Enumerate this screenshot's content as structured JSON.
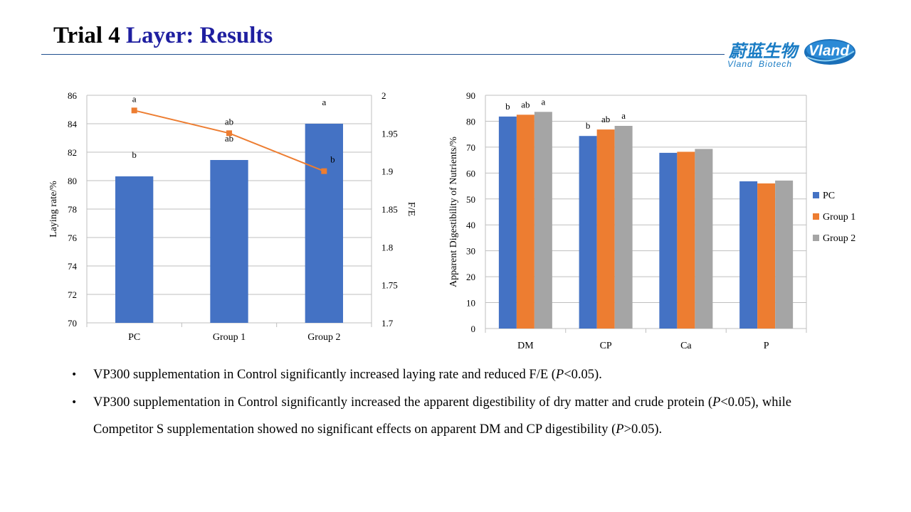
{
  "slide": {
    "title_part1": "Trial 4",
    "title_part2": "Layer: Results",
    "logo": {
      "cn": "蔚蓝生物",
      "en": "Vland Biotech",
      "badge": "Vland",
      "color": "#1a7cc4"
    }
  },
  "bullets": [
    {
      "pre": "VP300 supplementation in Control significantly increased laying rate and reduced F/E (",
      "p": "P",
      "post": "<0.05)."
    },
    {
      "pre": "VP300 supplementation in Control significantly increased the apparent digestibility of dry matter and crude protein (",
      "p1": "P",
      "mid": "<0.05), while Competitor S supplementation showed no significant effects on apparent DM and CP digestibility (",
      "p2": "P",
      "post": ">0.05)."
    }
  ],
  "chart_data": [
    {
      "type": "bar+line",
      "title": "",
      "categories": [
        "PC",
        "Group 1",
        "Group 2"
      ],
      "bar_series": {
        "name": "Laying rate",
        "values": [
          80.3,
          81.45,
          84.0
        ],
        "labels": [
          "b",
          "ab",
          "a"
        ],
        "color": "#4472c4"
      },
      "line_series": {
        "name": "F/E",
        "values": [
          1.98,
          1.95,
          1.9
        ],
        "labels": [
          "a",
          "ab",
          "b"
        ],
        "color": "#ed7d31"
      },
      "ylabel": "Laying rate/%",
      "y2label": "F/E",
      "ylim": [
        70,
        86
      ],
      "y2lim": [
        1.7,
        2.0
      ],
      "yticks": [
        "70",
        "72",
        "74",
        "76",
        "78",
        "80",
        "82",
        "84",
        "86"
      ],
      "y2ticks": [
        "1.7",
        "1.75",
        "1.8",
        "1.85",
        "1.9",
        "1.95",
        "2"
      ],
      "grid": true,
      "legend": "none"
    },
    {
      "type": "bar",
      "title": "",
      "categories": [
        "DM",
        "CP",
        "Ca",
        "P"
      ],
      "series": [
        {
          "name": "PC",
          "values": [
            81.8,
            74.3,
            67.8,
            56.8
          ],
          "color": "#4472c4",
          "labels": [
            "b",
            "b",
            "",
            ""
          ]
        },
        {
          "name": "Group 1",
          "values": [
            82.5,
            76.8,
            68.2,
            56.0
          ],
          "color": "#ed7d31",
          "labels": [
            "ab",
            "ab",
            "",
            ""
          ]
        },
        {
          "name": "Group 2",
          "values": [
            83.6,
            78.2,
            69.3,
            57.1
          ],
          "color": "#a5a5a5",
          "labels": [
            "a",
            "a",
            "",
            ""
          ]
        }
      ],
      "ylabel": "Apparent Digestibility of Nutrients/%",
      "ylim": [
        0,
        90
      ],
      "yticks": [
        "0",
        "10",
        "20",
        "30",
        "40",
        "50",
        "60",
        "70",
        "80",
        "90"
      ],
      "grid": true,
      "legend": "right"
    }
  ]
}
